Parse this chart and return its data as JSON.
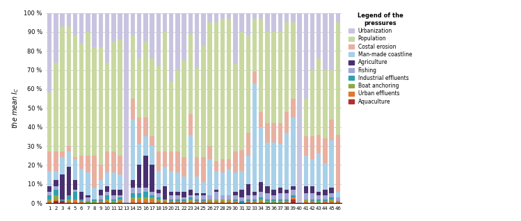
{
  "categories": [
    1,
    2,
    3,
    4,
    5,
    6,
    7,
    8,
    9,
    10,
    11,
    12,
    13,
    14,
    15,
    16,
    17,
    18,
    19,
    20,
    21,
    22,
    23,
    24,
    25,
    26,
    27,
    28,
    29,
    30,
    31,
    32,
    33,
    34,
    35,
    36,
    37,
    38,
    39,
    40,
    41,
    42,
    43,
    44,
    45,
    46
  ],
  "pressures": [
    "Aquaculture",
    "Urban effluents",
    "Boat anchoring",
    "Industrial effluents",
    "Fishing",
    "Agriculture",
    "Man-made coastline",
    "Costal erosion",
    "Population",
    "Urbanization"
  ],
  "colors": [
    "#b03030",
    "#e07830",
    "#8aaa44",
    "#30a0b0",
    "#a0a8d8",
    "#483070",
    "#a8d0e8",
    "#e8b0a0",
    "#c8d8a0",
    "#c8c4e0"
  ],
  "data": {
    "1": [
      0,
      1,
      1,
      2,
      2,
      3,
      8,
      10,
      31,
      42
    ],
    "2": [
      1,
      1,
      2,
      3,
      2,
      3,
      5,
      10,
      47,
      26
    ],
    "3": [
      1,
      0,
      0,
      1,
      0,
      13,
      9,
      3,
      66,
      7
    ],
    "4": [
      0,
      1,
      1,
      2,
      0,
      15,
      8,
      3,
      63,
      7
    ],
    "5": [
      0,
      2,
      0,
      4,
      1,
      5,
      11,
      1,
      64,
      12
    ],
    "6": [
      0,
      1,
      0,
      1,
      0,
      4,
      12,
      7,
      59,
      16
    ],
    "7": [
      0,
      0,
      1,
      0,
      2,
      1,
      12,
      9,
      65,
      10
    ],
    "8": [
      0,
      0,
      1,
      1,
      0,
      0,
      6,
      17,
      57,
      18
    ],
    "9": [
      0,
      1,
      0,
      1,
      2,
      3,
      5,
      8,
      62,
      18
    ],
    "10": [
      0,
      1,
      1,
      2,
      2,
      3,
      7,
      11,
      47,
      26
    ],
    "11": [
      0,
      0,
      1,
      1,
      2,
      3,
      9,
      11,
      58,
      15
    ],
    "12": [
      0,
      1,
      1,
      1,
      1,
      3,
      8,
      10,
      61,
      14
    ],
    "13": [
      0,
      0,
      0,
      0,
      0,
      0,
      0,
      0,
      0,
      100
    ],
    "14": [
      0,
      2,
      1,
      2,
      3,
      4,
      32,
      11,
      33,
      12
    ],
    "15": [
      0,
      2,
      1,
      2,
      3,
      12,
      11,
      14,
      31,
      24
    ],
    "16": [
      0,
      2,
      1,
      3,
      2,
      17,
      10,
      10,
      40,
      15
    ],
    "17": [
      0,
      2,
      1,
      1,
      2,
      14,
      10,
      5,
      41,
      24
    ],
    "18": [
      0,
      1,
      1,
      1,
      2,
      2,
      10,
      10,
      45,
      28
    ],
    "19": [
      0,
      1,
      1,
      0,
      0,
      7,
      10,
      8,
      63,
      10
    ],
    "20": [
      0,
      1,
      0,
      1,
      2,
      2,
      11,
      10,
      37,
      36
    ],
    "21": [
      0,
      1,
      0,
      1,
      2,
      2,
      10,
      11,
      43,
      30
    ],
    "22": [
      0,
      1,
      0,
      1,
      1,
      3,
      8,
      10,
      51,
      25
    ],
    "23": [
      0,
      1,
      1,
      1,
      1,
      3,
      29,
      11,
      42,
      11
    ],
    "24": [
      0,
      1,
      0,
      1,
      2,
      1,
      9,
      10,
      47,
      29
    ],
    "25": [
      0,
      1,
      0,
      1,
      2,
      1,
      6,
      13,
      59,
      17
    ],
    "26": [
      0,
      1,
      1,
      0,
      2,
      0,
      19,
      7,
      65,
      5
    ],
    "27": [
      0,
      1,
      1,
      0,
      4,
      1,
      10,
      5,
      73,
      5
    ],
    "28": [
      0,
      1,
      1,
      0,
      2,
      0,
      12,
      7,
      74,
      3
    ],
    "29": [
      0,
      1,
      1,
      0,
      2,
      0,
      14,
      5,
      74,
      3
    ],
    "30": [
      0,
      1,
      0,
      1,
      2,
      2,
      10,
      11,
      46,
      27
    ],
    "31": [
      0,
      0,
      0,
      1,
      2,
      4,
      10,
      11,
      62,
      10
    ],
    "32": [
      0,
      1,
      0,
      1,
      2,
      6,
      15,
      12,
      51,
      12
    ],
    "33": [
      0,
      1,
      0,
      1,
      2,
      2,
      57,
      6,
      28,
      3
    ],
    "34": [
      0,
      1,
      1,
      1,
      3,
      5,
      29,
      8,
      49,
      3
    ],
    "35": [
      0,
      0,
      1,
      1,
      3,
      4,
      23,
      10,
      48,
      10
    ],
    "36": [
      0,
      0,
      1,
      1,
      2,
      3,
      25,
      10,
      48,
      10
    ],
    "37": [
      0,
      0,
      1,
      1,
      3,
      3,
      23,
      11,
      48,
      10
    ],
    "38": [
      0,
      1,
      0,
      1,
      3,
      2,
      30,
      11,
      47,
      5
    ],
    "39": [
      2,
      1,
      0,
      1,
      3,
      2,
      36,
      10,
      40,
      5
    ],
    "40": [
      0,
      0,
      0,
      0,
      0,
      0,
      0,
      0,
      0,
      100
    ],
    "41": [
      0,
      1,
      1,
      0,
      3,
      4,
      16,
      10,
      20,
      45
    ],
    "42": [
      0,
      1,
      0,
      1,
      3,
      4,
      14,
      12,
      35,
      30
    ],
    "43": [
      0,
      0,
      1,
      1,
      2,
      2,
      20,
      10,
      40,
      24
    ],
    "44": [
      0,
      1,
      0,
      1,
      2,
      3,
      14,
      13,
      36,
      30
    ],
    "45": [
      0,
      1,
      1,
      1,
      2,
      3,
      25,
      11,
      26,
      30
    ],
    "46": [
      0,
      1,
      0,
      0,
      2,
      0,
      3,
      30,
      59,
      5
    ]
  },
  "ylabel": "the mean $I_C$",
  "ytick_labels": [
    "0 %",
    "10 %",
    "20 %",
    "30 %",
    "40 %",
    "50 %",
    "60 %",
    "70 %",
    "80 %",
    "90 %",
    "100 %"
  ],
  "legend_title": "Legend of the\npressures",
  "legend_labels": [
    "Urbanization",
    "Population",
    "Costal erosion",
    "Man-made coastline",
    "Agriculture",
    "Fishing",
    "Industrial effluents",
    "Boat anchoring",
    "Urban effluents",
    "Aquaculture"
  ]
}
